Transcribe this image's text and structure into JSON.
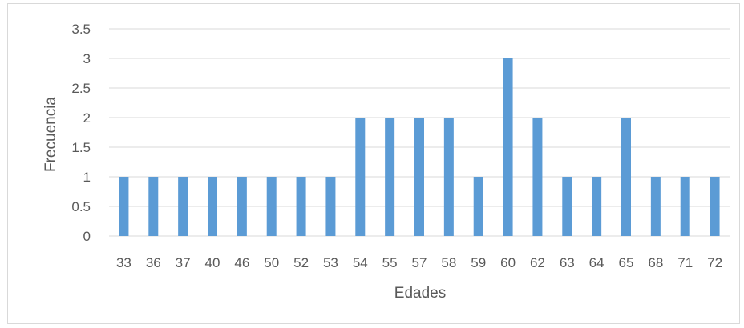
{
  "chart_data": {
    "type": "bar",
    "title": "",
    "xlabel": "Edades",
    "ylabel": "Frecuencia",
    "ylim": [
      0,
      3.5
    ],
    "y_ticks": [
      0,
      0.5,
      1,
      1.5,
      2,
      2.5,
      3,
      3.5
    ],
    "y_tick_labels": [
      "0",
      "0.5",
      "1",
      "1.5",
      "2",
      "2.5",
      "3",
      "3.5"
    ],
    "grid": true,
    "legend": "none",
    "bar_color": "#5b9bd5",
    "categories": [
      "33",
      "36",
      "37",
      "40",
      "46",
      "50",
      "52",
      "53",
      "54",
      "55",
      "57",
      "58",
      "59",
      "60",
      "62",
      "63",
      "64",
      "65",
      "68",
      "71",
      "72"
    ],
    "values": [
      1,
      1,
      1,
      1,
      1,
      1,
      1,
      1,
      2,
      2,
      2,
      2,
      1,
      3,
      2,
      1,
      1,
      2,
      1,
      1,
      1
    ]
  }
}
